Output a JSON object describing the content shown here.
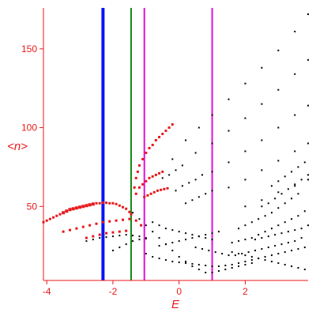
{
  "chart_data": {
    "type": "scatter",
    "title": "",
    "xlabel": "E",
    "ylabel": "<n>",
    "xlim": [
      -4.1,
      3.9
    ],
    "ylim": [
      3,
      176
    ],
    "x_ticks": [
      -4,
      -2,
      0,
      2
    ],
    "y_ticks": [
      50,
      100,
      150
    ],
    "grid": false,
    "legend": "none",
    "colors": {
      "axis": "#e8191c",
      "highlight": "#e8191c",
      "points": "#000000",
      "line_blue": "#0a14f0",
      "line_green": "#128a12",
      "line_magenta": "#e010e0"
    },
    "vertical_lines": [
      {
        "x": -2.3,
        "color": "#0a14f0",
        "width": 4
      },
      {
        "x": -1.45,
        "color": "#128a12",
        "width": 2
      },
      {
        "x": -1.05,
        "color": "#e010e0",
        "width": 2
      },
      {
        "x": 1.0,
        "color": "#e010e0",
        "width": 2
      }
    ],
    "highlighted_points": [
      [
        -4.1,
        40
      ],
      [
        -4.0,
        41
      ],
      [
        -3.9,
        42
      ],
      [
        -3.8,
        43
      ],
      [
        -3.7,
        44
      ],
      [
        -3.6,
        45
      ],
      [
        -3.5,
        46
      ],
      [
        -3.4,
        47
      ],
      [
        -3.3,
        48
      ],
      [
        -3.2,
        48.5
      ],
      [
        -3.1,
        49
      ],
      [
        -3.0,
        49.5
      ],
      [
        -2.9,
        50
      ],
      [
        -2.8,
        50.5
      ],
      [
        -2.7,
        51
      ],
      [
        -2.6,
        51.5
      ],
      [
        -2.5,
        52
      ],
      [
        -2.4,
        52
      ],
      [
        -2.3,
        52.3
      ],
      [
        -2.2,
        52.3
      ],
      [
        -2.1,
        52
      ],
      [
        -2.0,
        52
      ],
      [
        -1.9,
        51.5
      ],
      [
        -1.8,
        50.5
      ],
      [
        -1.7,
        49.5
      ],
      [
        -1.6,
        48.5
      ],
      [
        -1.5,
        46.5
      ],
      [
        -3.5,
        34
      ],
      [
        -3.3,
        35
      ],
      [
        -3.1,
        36
      ],
      [
        -2.9,
        37
      ],
      [
        -2.7,
        38
      ],
      [
        -2.5,
        39
      ],
      [
        -2.3,
        40
      ],
      [
        -2.1,
        40.5
      ],
      [
        -1.9,
        41
      ],
      [
        -1.7,
        41.5
      ],
      [
        -1.5,
        42
      ],
      [
        -1.3,
        41
      ],
      [
        -1.15,
        38
      ],
      [
        -2.8,
        30
      ],
      [
        -2.6,
        31
      ],
      [
        -2.4,
        32
      ],
      [
        -2.2,
        33
      ],
      [
        -2.0,
        33.5
      ],
      [
        -1.8,
        34
      ],
      [
        -1.6,
        34.5
      ],
      [
        -1.45,
        45
      ],
      [
        -1.35,
        62
      ],
      [
        -1.3,
        68
      ],
      [
        -1.25,
        72
      ],
      [
        -1.2,
        76
      ],
      [
        -1.1,
        80
      ],
      [
        -1.0,
        84
      ],
      [
        -0.9,
        87
      ],
      [
        -0.8,
        89
      ],
      [
        -0.7,
        92
      ],
      [
        -0.6,
        94
      ],
      [
        -0.5,
        96
      ],
      [
        -0.4,
        98
      ],
      [
        -0.3,
        100
      ],
      [
        -0.2,
        102
      ],
      [
        -1.3,
        58
      ],
      [
        -1.2,
        62
      ],
      [
        -1.1,
        64
      ],
      [
        -1.0,
        66
      ],
      [
        -0.9,
        68
      ],
      [
        -0.8,
        69
      ],
      [
        -0.7,
        70
      ],
      [
        -0.6,
        71
      ],
      [
        -0.5,
        72
      ],
      [
        -1.05,
        56
      ],
      [
        -0.95,
        57
      ],
      [
        -0.85,
        58
      ],
      [
        -0.75,
        59
      ],
      [
        -0.65,
        60
      ],
      [
        -0.55,
        60.5
      ],
      [
        -0.45,
        61
      ],
      [
        -0.35,
        61.5
      ]
    ],
    "point_series": [
      {
        "points": [
          [
            -0.2,
            80
          ],
          [
            0.2,
            92
          ],
          [
            0.6,
            100
          ],
          [
            1.0,
            108
          ],
          [
            1.5,
            118
          ],
          [
            2.0,
            128
          ],
          [
            2.5,
            138
          ],
          [
            3.0,
            149
          ],
          [
            3.5,
            161
          ],
          [
            3.9,
            172
          ]
        ]
      },
      {
        "points": [
          [
            0.5,
            84
          ],
          [
            1.0,
            90
          ],
          [
            1.5,
            98
          ],
          [
            2.0,
            106
          ],
          [
            2.5,
            115
          ],
          [
            3.0,
            124
          ],
          [
            3.5,
            134
          ],
          [
            3.9,
            143
          ]
        ]
      },
      {
        "points": [
          [
            1.0,
            72
          ],
          [
            1.5,
            78
          ],
          [
            2.0,
            85
          ],
          [
            2.5,
            92
          ],
          [
            3.0,
            100
          ],
          [
            3.5,
            108
          ],
          [
            3.9,
            114
          ]
        ]
      },
      {
        "points": [
          [
            1.5,
            62
          ],
          [
            2.0,
            67
          ],
          [
            2.5,
            73
          ],
          [
            3.0,
            79
          ],
          [
            3.5,
            85
          ],
          [
            3.9,
            90
          ]
        ]
      },
      {
        "points": [
          [
            2.0,
            50
          ],
          [
            2.5,
            54
          ],
          [
            3.0,
            59
          ],
          [
            3.5,
            63
          ],
          [
            3.9,
            67
          ]
        ]
      },
      {
        "points": [
          [
            -0.5,
            68
          ],
          [
            -0.3,
            70
          ],
          [
            -0.1,
            73
          ],
          [
            0.1,
            76
          ]
        ]
      },
      {
        "points": [
          [
            -0.1,
            60
          ],
          [
            0.1,
            63
          ],
          [
            0.3,
            65
          ],
          [
            0.5,
            67
          ],
          [
            0.7,
            70
          ]
        ]
      },
      {
        "points": [
          [
            0.2,
            52
          ],
          [
            0.4,
            54
          ],
          [
            0.6,
            56
          ],
          [
            0.8,
            58
          ],
          [
            1.0,
            60
          ]
        ]
      },
      {
        "points": [
          [
            -2.8,
            28
          ],
          [
            -2.6,
            29
          ],
          [
            -2.4,
            30
          ],
          [
            -2.2,
            30.5
          ],
          [
            -2.0,
            31
          ],
          [
            -1.8,
            31.5
          ],
          [
            -1.6,
            32
          ],
          [
            -1.4,
            31.5
          ],
          [
            -1.2,
            31
          ],
          [
            -1.0,
            30
          ]
        ]
      },
      {
        "points": [
          [
            -2.0,
            22
          ],
          [
            -1.8,
            24
          ],
          [
            -1.6,
            26
          ],
          [
            -1.4,
            28
          ],
          [
            -1.2,
            29
          ],
          [
            -1.0,
            29.5
          ]
        ]
      },
      {
        "points": [
          [
            -1.0,
            20
          ],
          [
            -0.8,
            18
          ],
          [
            -0.6,
            17
          ],
          [
            -0.4,
            16
          ],
          [
            -0.2,
            15
          ],
          [
            0.0,
            14.5
          ],
          [
            0.2,
            14
          ],
          [
            0.4,
            13.5
          ],
          [
            0.6,
            13
          ],
          [
            0.8,
            12.5
          ],
          [
            1.0,
            12
          ],
          [
            1.2,
            12
          ],
          [
            1.4,
            12.5
          ],
          [
            1.6,
            13
          ],
          [
            1.8,
            14
          ],
          [
            2.0,
            15
          ],
          [
            2.2,
            16
          ],
          [
            2.4,
            17
          ],
          [
            2.6,
            18
          ],
          [
            2.8,
            19
          ],
          [
            3.0,
            20
          ],
          [
            3.2,
            21
          ],
          [
            3.4,
            22
          ],
          [
            3.6,
            23
          ],
          [
            3.8,
            24
          ]
        ]
      },
      {
        "points": [
          [
            -1.4,
            46
          ],
          [
            -1.2,
            42
          ],
          [
            -1.0,
            38
          ],
          [
            -0.8,
            34
          ],
          [
            -0.6,
            30
          ],
          [
            -0.4,
            26
          ],
          [
            -0.2,
            22
          ],
          [
            0.0,
            18
          ],
          [
            0.2,
            15
          ],
          [
            0.4,
            12
          ],
          [
            0.6,
            10
          ],
          [
            0.8,
            8
          ]
        ]
      },
      {
        "points": [
          [
            3.7,
            30
          ],
          [
            3.5,
            28
          ],
          [
            3.3,
            27
          ],
          [
            3.1,
            26
          ],
          [
            2.9,
            25
          ],
          [
            2.7,
            24
          ],
          [
            2.5,
            23
          ],
          [
            2.3,
            22
          ],
          [
            2.1,
            21
          ],
          [
            1.9,
            20
          ],
          [
            1.7,
            19
          ],
          [
            1.5,
            19
          ],
          [
            1.3,
            20
          ],
          [
            1.1,
            21
          ],
          [
            0.9,
            22
          ],
          [
            0.7,
            23
          ],
          [
            0.5,
            24
          ]
        ]
      },
      {
        "points": [
          [
            3.8,
            47
          ],
          [
            3.6,
            44
          ],
          [
            3.4,
            42
          ],
          [
            3.2,
            40
          ],
          [
            3.0,
            38
          ],
          [
            2.8,
            36
          ],
          [
            2.6,
            34
          ],
          [
            2.4,
            32
          ],
          [
            2.2,
            30
          ],
          [
            2.0,
            29
          ],
          [
            1.8,
            28
          ],
          [
            1.6,
            27
          ]
        ]
      },
      {
        "points": [
          [
            3.9,
            38
          ],
          [
            3.7,
            36
          ],
          [
            3.5,
            35
          ],
          [
            3.3,
            34
          ],
          [
            3.1,
            33
          ],
          [
            2.9,
            32
          ],
          [
            2.7,
            31
          ],
          [
            2.5,
            30
          ],
          [
            2.3,
            29
          ]
        ]
      },
      {
        "points": [
          [
            3.8,
            10
          ],
          [
            3.6,
            11
          ],
          [
            3.4,
            12
          ],
          [
            3.2,
            13
          ],
          [
            3.0,
            14
          ],
          [
            2.8,
            15
          ],
          [
            2.6,
            16
          ],
          [
            2.4,
            17
          ],
          [
            2.2,
            18
          ],
          [
            2.0,
            19
          ],
          [
            1.8,
            20
          ],
          [
            1.6,
            21
          ]
        ]
      },
      {
        "points": [
          [
            -0.6,
            25
          ],
          [
            -0.4,
            26
          ],
          [
            -0.2,
            27
          ],
          [
            0.0,
            28
          ],
          [
            0.2,
            29
          ],
          [
            0.4,
            30
          ],
          [
            0.6,
            31
          ],
          [
            0.8,
            32
          ],
          [
            1.0,
            33
          ],
          [
            1.2,
            34
          ]
        ]
      },
      {
        "points": [
          [
            -0.8,
            40
          ],
          [
            -0.6,
            38
          ],
          [
            -0.4,
            36
          ],
          [
            -0.2,
            35
          ],
          [
            0.0,
            34
          ],
          [
            0.2,
            33
          ],
          [
            0.4,
            32
          ],
          [
            0.6,
            31
          ],
          [
            0.8,
            30
          ],
          [
            1.0,
            29
          ]
        ]
      },
      {
        "points": [
          [
            3.6,
            58
          ],
          [
            3.4,
            55
          ],
          [
            3.2,
            52
          ],
          [
            3.0,
            49
          ],
          [
            2.8,
            46
          ],
          [
            2.6,
            44
          ],
          [
            2.4,
            42
          ],
          [
            2.2,
            40
          ],
          [
            2.0,
            38
          ],
          [
            1.8,
            36
          ]
        ]
      },
      {
        "points": [
          [
            3.9,
            70
          ],
          [
            3.7,
            67
          ],
          [
            3.5,
            64
          ],
          [
            3.3,
            61
          ],
          [
            3.1,
            58
          ],
          [
            2.9,
            55
          ],
          [
            2.7,
            52
          ],
          [
            2.5,
            50
          ]
        ]
      },
      {
        "points": [
          [
            3.8,
            78
          ],
          [
            3.6,
            75
          ],
          [
            3.4,
            72
          ],
          [
            3.2,
            69
          ],
          [
            3.0,
            66
          ],
          [
            2.8,
            63
          ]
        ]
      },
      {
        "points": [
          [
            1.0,
            8
          ],
          [
            1.2,
            9
          ],
          [
            1.4,
            10
          ],
          [
            1.6,
            11
          ],
          [
            1.8,
            12
          ],
          [
            2.0,
            13
          ],
          [
            2.2,
            14
          ]
        ]
      }
    ]
  }
}
